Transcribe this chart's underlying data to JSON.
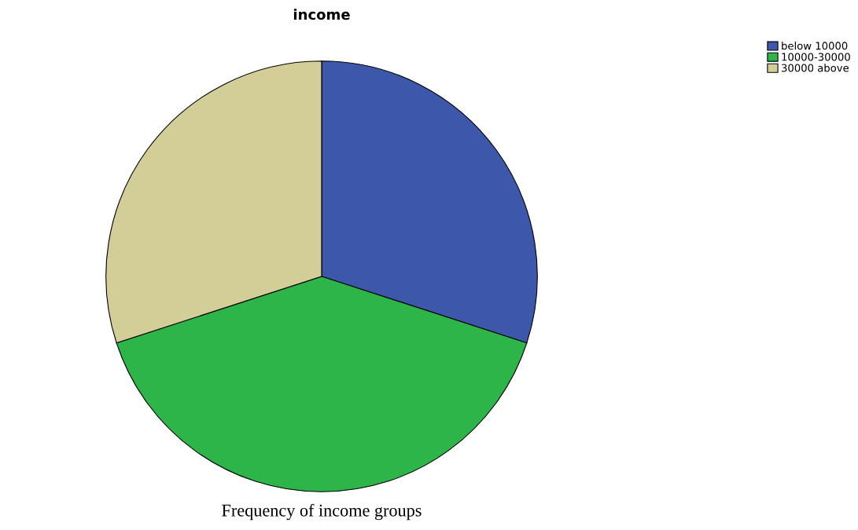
{
  "chart_data": {
    "type": "pie",
    "title": "income",
    "categories": [
      "below 10000",
      "10000-30000",
      "30000 above"
    ],
    "values": [
      30,
      40,
      30
    ],
    "colors": [
      "#3d58aa",
      "#2db54a",
      "#d3ce98"
    ],
    "legend": "top right",
    "annotations": [
      "Frequency of income groups"
    ]
  }
}
